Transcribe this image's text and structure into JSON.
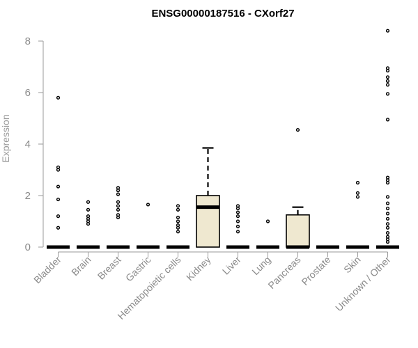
{
  "chart_data": {
    "type": "box",
    "title": "ENSG00000187516 - CXorf27",
    "xlabel": "",
    "ylabel": "Expression",
    "ylim": [
      0,
      8.4
    ],
    "yticks": [
      0,
      2,
      4,
      6,
      8
    ],
    "grid": false,
    "box_fill": "#efe8d0",
    "categories": [
      "Bladder",
      "Brain",
      "Breast",
      "Gastric",
      "Hematopoietic cells",
      "Kidney",
      "Liver",
      "Lung",
      "Pancreas",
      "Prostate",
      "Skin",
      "Unknown / Other"
    ],
    "boxes": [
      {
        "category": "Bladder",
        "q1": 0,
        "median": 0,
        "q3": 0,
        "whisker_low": 0,
        "whisker_high": 0,
        "outliers": [
          0.75,
          1.2,
          1.85,
          2.35,
          3.0,
          3.1,
          5.8
        ]
      },
      {
        "category": "Brain",
        "q1": 0,
        "median": 0,
        "q3": 0,
        "whisker_low": 0,
        "whisker_high": 0,
        "outliers": [
          0.9,
          1.0,
          1.1,
          1.2,
          1.45,
          1.75
        ]
      },
      {
        "category": "Breast",
        "q1": 0,
        "median": 0,
        "q3": 0,
        "whisker_low": 0,
        "whisker_high": 0,
        "outliers": [
          1.15,
          1.25,
          1.45,
          1.6,
          1.75,
          2.05,
          2.2,
          2.3
        ]
      },
      {
        "category": "Gastric",
        "q1": 0,
        "median": 0,
        "q3": 0,
        "whisker_low": 0,
        "whisker_high": 0,
        "outliers": [
          1.65
        ]
      },
      {
        "category": "Hematopoietic cells",
        "q1": 0,
        "median": 0,
        "q3": 0,
        "whisker_low": 0,
        "whisker_high": 0,
        "outliers": [
          0.6,
          0.75,
          0.85,
          1.0,
          1.15,
          1.45,
          1.6
        ]
      },
      {
        "category": "Kidney",
        "q1": 0,
        "median": 1.55,
        "q3": 2.0,
        "whisker_low": 0,
        "whisker_high": 3.85,
        "outliers": []
      },
      {
        "category": "Liver",
        "q1": 0,
        "median": 0,
        "q3": 0,
        "whisker_low": 0,
        "whisker_high": 0,
        "outliers": [
          0.6,
          0.8,
          1.0,
          1.2,
          1.35,
          1.5,
          1.6
        ]
      },
      {
        "category": "Lung",
        "q1": 0,
        "median": 0,
        "q3": 0,
        "whisker_low": 0,
        "whisker_high": 0,
        "outliers": [
          1.0
        ]
      },
      {
        "category": "Pancreas",
        "q1": 0,
        "median": 0,
        "q3": 1.25,
        "whisker_low": 0,
        "whisker_high": 1.55,
        "outliers": [
          4.55
        ]
      },
      {
        "category": "Prostate",
        "q1": 0,
        "median": 0,
        "q3": 0,
        "whisker_low": 0,
        "whisker_high": 0,
        "outliers": []
      },
      {
        "category": "Skin",
        "q1": 0,
        "median": 0,
        "q3": 0,
        "whisker_low": 0,
        "whisker_high": 0,
        "outliers": [
          1.95,
          2.1,
          2.5
        ]
      },
      {
        "category": "Unknown / Other",
        "q1": 0,
        "median": 0,
        "q3": 0,
        "whisker_low": 0,
        "whisker_high": 0,
        "outliers": [
          0.2,
          0.3,
          0.4,
          0.55,
          0.75,
          0.9,
          1.1,
          1.3,
          1.5,
          1.7,
          1.95,
          2.5,
          2.6,
          2.7,
          4.95,
          5.95,
          6.3,
          6.45,
          6.6,
          6.85,
          6.95,
          8.4
        ]
      }
    ]
  }
}
